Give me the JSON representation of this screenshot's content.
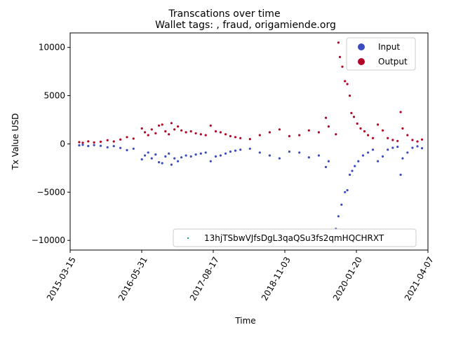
{
  "chart_data": {
    "type": "scatter",
    "suptitle": "Transcations over time",
    "title": "Wallet tags: , fraud, origamiende.org",
    "xlabel": "Time",
    "ylabel": "Tx Value USD",
    "x_axis_type": "date",
    "xlim": [
      "2015-03-15",
      "2021-04-07"
    ],
    "ylim": [
      -11000,
      11500
    ],
    "x_ticks": [
      "2015-03-15",
      "2016-05-31",
      "2017-08-17",
      "2018-11-03",
      "2020-01-20",
      "2021-04-07"
    ],
    "y_ticks": [
      -10000,
      -5000,
      0,
      5000,
      10000
    ],
    "y_tick_labels": [
      "−10000",
      "−5000",
      "0",
      "5000",
      "10000"
    ],
    "grid": false,
    "legend_top": {
      "placement": "top-right",
      "entries": [
        "Input",
        "Output"
      ]
    },
    "legend_bottom": {
      "placement": "bottom-right",
      "entries": [
        "13hjTSbwVJfsDgL3qaQSu3fs2qmHQCHRXT"
      ]
    },
    "colors": {
      "input": "#3b4cc0",
      "output": "#b40426",
      "address_marker": "#1f9e89"
    },
    "series": [
      {
        "name": "Output",
        "points": [
          [
            "2015-05-10",
            180
          ],
          [
            "2015-06-01",
            120
          ],
          [
            "2015-07-05",
            260
          ],
          [
            "2015-08-10",
            150
          ],
          [
            "2015-09-20",
            220
          ],
          [
            "2015-11-01",
            380
          ],
          [
            "2015-12-10",
            250
          ],
          [
            "2016-01-20",
            450
          ],
          [
            "2016-03-01",
            700
          ],
          [
            "2016-04-10",
            550
          ],
          [
            "2016-06-01",
            1600
          ],
          [
            "2016-06-20",
            1200
          ],
          [
            "2016-07-10",
            900
          ],
          [
            "2016-08-01",
            1500
          ],
          [
            "2016-08-25",
            1100
          ],
          [
            "2016-09-15",
            1900
          ],
          [
            "2016-10-05",
            2000
          ],
          [
            "2016-10-25",
            1300
          ],
          [
            "2016-11-15",
            1000
          ],
          [
            "2016-12-01",
            2150
          ],
          [
            "2016-12-20",
            1500
          ],
          [
            "2017-01-10",
            1800
          ],
          [
            "2017-02-01",
            1400
          ],
          [
            "2017-03-01",
            1200
          ],
          [
            "2017-04-01",
            1300
          ],
          [
            "2017-05-01",
            1100
          ],
          [
            "2017-06-01",
            1000
          ],
          [
            "2017-07-01",
            900
          ],
          [
            "2017-08-01",
            1900
          ],
          [
            "2017-09-01",
            1300
          ],
          [
            "2017-10-01",
            1200
          ],
          [
            "2017-11-01",
            1000
          ],
          [
            "2017-12-01",
            800
          ],
          [
            "2018-01-01",
            700
          ],
          [
            "2018-02-01",
            600
          ],
          [
            "2018-04-01",
            500
          ],
          [
            "2018-06-01",
            900
          ],
          [
            "2018-08-01",
            1200
          ],
          [
            "2018-10-01",
            1500
          ],
          [
            "2018-12-01",
            800
          ],
          [
            "2019-02-01",
            900
          ],
          [
            "2019-04-01",
            1400
          ],
          [
            "2019-06-01",
            1200
          ],
          [
            "2019-07-15",
            2700
          ],
          [
            "2019-08-01",
            1800
          ],
          [
            "2019-09-15",
            1000
          ],
          [
            "2019-10-01",
            10500
          ],
          [
            "2019-10-10",
            9000
          ],
          [
            "2019-10-25",
            8000
          ],
          [
            "2019-11-10",
            6500
          ],
          [
            "2019-11-25",
            6200
          ],
          [
            "2019-12-10",
            5000
          ],
          [
            "2019-12-20",
            3200
          ],
          [
            "2020-01-05",
            2800
          ],
          [
            "2020-01-25",
            2100
          ],
          [
            "2020-02-15",
            1600
          ],
          [
            "2020-03-10",
            1300
          ],
          [
            "2020-04-01",
            900
          ],
          [
            "2020-05-01",
            600
          ],
          [
            "2020-06-01",
            2000
          ],
          [
            "2020-07-01",
            1400
          ],
          [
            "2020-08-01",
            600
          ],
          [
            "2020-09-01",
            400
          ],
          [
            "2020-10-01",
            300
          ],
          [
            "2020-10-20",
            3300
          ],
          [
            "2020-11-01",
            1600
          ],
          [
            "2020-12-01",
            900
          ],
          [
            "2021-01-01",
            400
          ],
          [
            "2021-02-01",
            250
          ],
          [
            "2021-03-01",
            450
          ]
        ]
      },
      {
        "name": "Input",
        "points": [
          [
            "2015-05-10",
            -150
          ],
          [
            "2015-06-01",
            -100
          ],
          [
            "2015-07-05",
            -220
          ],
          [
            "2015-08-10",
            -120
          ],
          [
            "2015-09-20",
            -200
          ],
          [
            "2015-11-01",
            -350
          ],
          [
            "2015-12-10",
            -230
          ],
          [
            "2016-01-20",
            -420
          ],
          [
            "2016-03-01",
            -650
          ],
          [
            "2016-04-10",
            -500
          ],
          [
            "2016-06-01",
            -1600
          ],
          [
            "2016-06-20",
            -1200
          ],
          [
            "2016-07-10",
            -900
          ],
          [
            "2016-08-01",
            -1500
          ],
          [
            "2016-08-25",
            -1100
          ],
          [
            "2016-09-15",
            -1900
          ],
          [
            "2016-10-05",
            -2000
          ],
          [
            "2016-10-25",
            -1300
          ],
          [
            "2016-11-15",
            -1000
          ],
          [
            "2016-12-01",
            -2150
          ],
          [
            "2016-12-20",
            -1500
          ],
          [
            "2017-01-10",
            -1800
          ],
          [
            "2017-02-01",
            -1400
          ],
          [
            "2017-03-01",
            -1200
          ],
          [
            "2017-04-01",
            -1300
          ],
          [
            "2017-05-01",
            -1100
          ],
          [
            "2017-06-01",
            -1000
          ],
          [
            "2017-07-01",
            -900
          ],
          [
            "2017-08-01",
            -1800
          ],
          [
            "2017-09-01",
            -1300
          ],
          [
            "2017-10-01",
            -1200
          ],
          [
            "2017-11-01",
            -1000
          ],
          [
            "2017-12-01",
            -800
          ],
          [
            "2018-01-01",
            -700
          ],
          [
            "2018-02-01",
            -600
          ],
          [
            "2018-04-01",
            -500
          ],
          [
            "2018-06-01",
            -900
          ],
          [
            "2018-08-01",
            -1200
          ],
          [
            "2018-10-01",
            -1500
          ],
          [
            "2018-12-01",
            -800
          ],
          [
            "2019-02-01",
            -900
          ],
          [
            "2019-04-01",
            -1400
          ],
          [
            "2019-06-01",
            -1200
          ],
          [
            "2019-07-15",
            -2400
          ],
          [
            "2019-08-01",
            -1800
          ],
          [
            "2019-09-15",
            -8800
          ],
          [
            "2019-10-01",
            -7500
          ],
          [
            "2019-10-20",
            -6300
          ],
          [
            "2019-11-10",
            -5000
          ],
          [
            "2019-11-25",
            -4800
          ],
          [
            "2019-12-10",
            -3200
          ],
          [
            "2019-12-25",
            -2800
          ],
          [
            "2020-01-10",
            -2300
          ],
          [
            "2020-02-01",
            -1800
          ],
          [
            "2020-03-01",
            -1200
          ],
          [
            "2020-04-01",
            -900
          ],
          [
            "2020-05-01",
            -600
          ],
          [
            "2020-06-01",
            -1800
          ],
          [
            "2020-07-01",
            -1300
          ],
          [
            "2020-08-01",
            -600
          ],
          [
            "2020-09-01",
            -400
          ],
          [
            "2020-10-01",
            -300
          ],
          [
            "2020-10-20",
            -3200
          ],
          [
            "2020-11-01",
            -1500
          ],
          [
            "2020-12-01",
            -900
          ],
          [
            "2021-01-01",
            -400
          ],
          [
            "2021-02-01",
            -250
          ],
          [
            "2021-03-01",
            -450
          ]
        ]
      }
    ]
  }
}
